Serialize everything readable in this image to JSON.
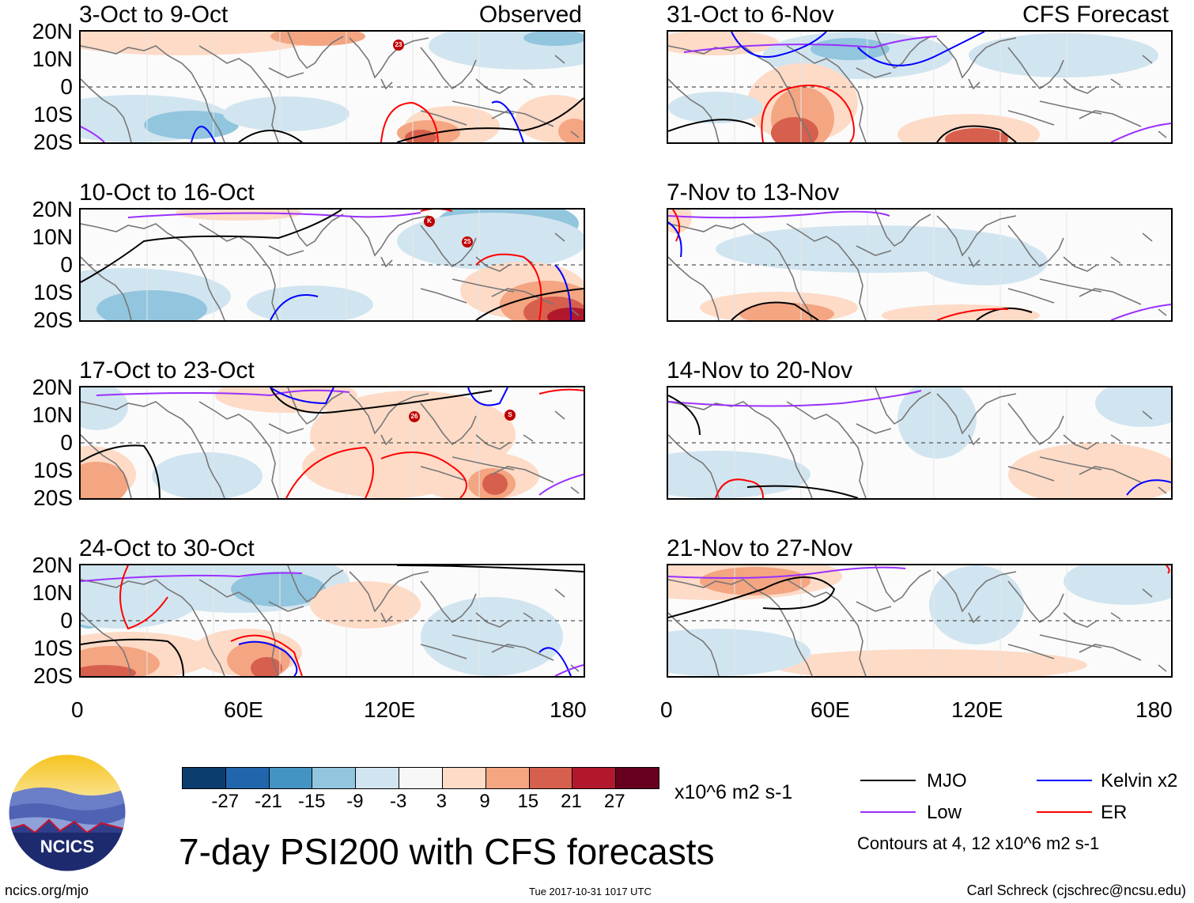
{
  "panels": [
    {
      "id": "p1",
      "title": "3-Oct to 9-Oct",
      "tag": "Observed"
    },
    {
      "id": "p2",
      "title": "31-Oct to 6-Nov",
      "tag": "CFS Forecast"
    },
    {
      "id": "p3",
      "title": "10-Oct to 16-Oct",
      "tag": ""
    },
    {
      "id": "p4",
      "title": "7-Nov to 13-Nov",
      "tag": ""
    },
    {
      "id": "p5",
      "title": "17-Oct to 23-Oct",
      "tag": ""
    },
    {
      "id": "p6",
      "title": "14-Nov to 20-Nov",
      "tag": ""
    },
    {
      "id": "p7",
      "title": "24-Oct to 30-Oct",
      "tag": ""
    },
    {
      "id": "p8",
      "title": "21-Nov to 27-Nov",
      "tag": ""
    }
  ],
  "lat_labels": [
    "20N",
    "10N",
    "0",
    "10S",
    "20S"
  ],
  "lon_labels": [
    "0",
    "60E",
    "120E",
    "180"
  ],
  "storms": [
    {
      "panel": "p1",
      "label": "23"
    },
    {
      "panel": "p3",
      "label": "K"
    },
    {
      "panel": "p3",
      "label": "25"
    },
    {
      "panel": "p5",
      "label": "26"
    },
    {
      "panel": "p5",
      "label": "S"
    }
  ],
  "colorbar": {
    "colors": [
      "#0b3d6e",
      "#2166ac",
      "#4393c3",
      "#92c5de",
      "#d1e5f0",
      "#f7f7f7",
      "#fddbc7",
      "#f4a582",
      "#d6604d",
      "#b2182b",
      "#67001f"
    ],
    "ticks": [
      "-27",
      "-21",
      "-15",
      "-9",
      "-3",
      "3",
      "9",
      "15",
      "21",
      "27"
    ],
    "units": "x10^6 m2 s-1"
  },
  "legend": {
    "items": [
      {
        "label": "MJO",
        "color": "#000000"
      },
      {
        "label": "Kelvin x2",
        "color": "#0000ff"
      },
      {
        "label": "Low",
        "color": "#9b30ff"
      },
      {
        "label": "ER",
        "color": "#ff0000"
      }
    ],
    "note": "Contours at 4, 12 x10^6 m2 s-1"
  },
  "logo_text": "NCICS",
  "main_title": "7-day PSI200 with CFS forecasts",
  "footer": {
    "left": "ncics.org/mjo",
    "center": "Tue 2017-10-31 1017 UTC",
    "right": "Carl Schreck (cjschrec@ncsu.edu)"
  },
  "colors": {
    "blue_fill": "#92c5de",
    "light_blue": "#d1e5f0",
    "light_red": "#fddbc7",
    "mid_red": "#f4a582",
    "red": "#d6604d",
    "dark_red": "#b2182b"
  }
}
